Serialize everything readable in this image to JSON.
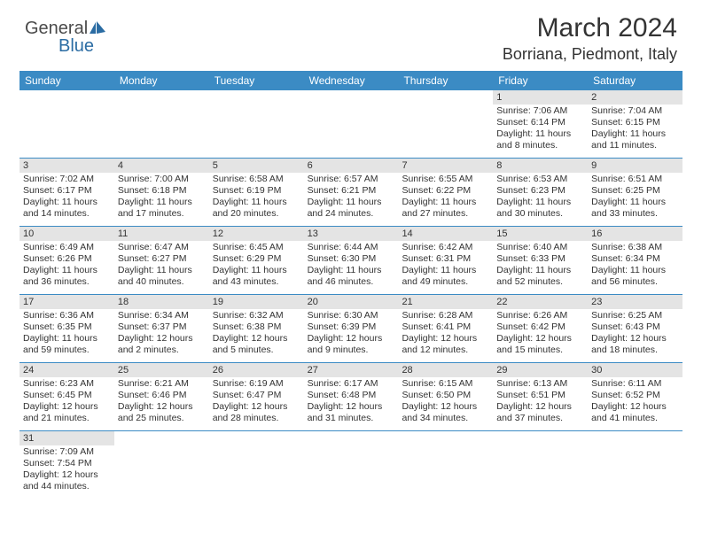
{
  "logo": {
    "general": "General",
    "blue": "Blue"
  },
  "header": {
    "title": "March 2024",
    "location": "Borriana, Piedmont, Italy"
  },
  "colors": {
    "header_bg": "#3b8bc4",
    "header_text": "#ffffff",
    "daynum_bg": "#e4e4e4",
    "row_border": "#3b8bc4",
    "text": "#333333",
    "logo_gray": "#4a4a4a",
    "logo_blue": "#2b6ca3"
  },
  "typography": {
    "title_fontsize": 30,
    "location_fontsize": 18,
    "dayheader_fontsize": 12,
    "daynum_fontsize": 11,
    "content_fontsize": 10.5
  },
  "day_headers": [
    "Sunday",
    "Monday",
    "Tuesday",
    "Wednesday",
    "Thursday",
    "Friday",
    "Saturday"
  ],
  "weeks": [
    [
      {
        "num": "",
        "lines": []
      },
      {
        "num": "",
        "lines": []
      },
      {
        "num": "",
        "lines": []
      },
      {
        "num": "",
        "lines": []
      },
      {
        "num": "",
        "lines": []
      },
      {
        "num": "1",
        "lines": [
          "Sunrise: 7:06 AM",
          "Sunset: 6:14 PM",
          "Daylight: 11 hours",
          "and 8 minutes."
        ]
      },
      {
        "num": "2",
        "lines": [
          "Sunrise: 7:04 AM",
          "Sunset: 6:15 PM",
          "Daylight: 11 hours",
          "and 11 minutes."
        ]
      }
    ],
    [
      {
        "num": "3",
        "lines": [
          "Sunrise: 7:02 AM",
          "Sunset: 6:17 PM",
          "Daylight: 11 hours",
          "and 14 minutes."
        ]
      },
      {
        "num": "4",
        "lines": [
          "Sunrise: 7:00 AM",
          "Sunset: 6:18 PM",
          "Daylight: 11 hours",
          "and 17 minutes."
        ]
      },
      {
        "num": "5",
        "lines": [
          "Sunrise: 6:58 AM",
          "Sunset: 6:19 PM",
          "Daylight: 11 hours",
          "and 20 minutes."
        ]
      },
      {
        "num": "6",
        "lines": [
          "Sunrise: 6:57 AM",
          "Sunset: 6:21 PM",
          "Daylight: 11 hours",
          "and 24 minutes."
        ]
      },
      {
        "num": "7",
        "lines": [
          "Sunrise: 6:55 AM",
          "Sunset: 6:22 PM",
          "Daylight: 11 hours",
          "and 27 minutes."
        ]
      },
      {
        "num": "8",
        "lines": [
          "Sunrise: 6:53 AM",
          "Sunset: 6:23 PM",
          "Daylight: 11 hours",
          "and 30 minutes."
        ]
      },
      {
        "num": "9",
        "lines": [
          "Sunrise: 6:51 AM",
          "Sunset: 6:25 PM",
          "Daylight: 11 hours",
          "and 33 minutes."
        ]
      }
    ],
    [
      {
        "num": "10",
        "lines": [
          "Sunrise: 6:49 AM",
          "Sunset: 6:26 PM",
          "Daylight: 11 hours",
          "and 36 minutes."
        ]
      },
      {
        "num": "11",
        "lines": [
          "Sunrise: 6:47 AM",
          "Sunset: 6:27 PM",
          "Daylight: 11 hours",
          "and 40 minutes."
        ]
      },
      {
        "num": "12",
        "lines": [
          "Sunrise: 6:45 AM",
          "Sunset: 6:29 PM",
          "Daylight: 11 hours",
          "and 43 minutes."
        ]
      },
      {
        "num": "13",
        "lines": [
          "Sunrise: 6:44 AM",
          "Sunset: 6:30 PM",
          "Daylight: 11 hours",
          "and 46 minutes."
        ]
      },
      {
        "num": "14",
        "lines": [
          "Sunrise: 6:42 AM",
          "Sunset: 6:31 PM",
          "Daylight: 11 hours",
          "and 49 minutes."
        ]
      },
      {
        "num": "15",
        "lines": [
          "Sunrise: 6:40 AM",
          "Sunset: 6:33 PM",
          "Daylight: 11 hours",
          "and 52 minutes."
        ]
      },
      {
        "num": "16",
        "lines": [
          "Sunrise: 6:38 AM",
          "Sunset: 6:34 PM",
          "Daylight: 11 hours",
          "and 56 minutes."
        ]
      }
    ],
    [
      {
        "num": "17",
        "lines": [
          "Sunrise: 6:36 AM",
          "Sunset: 6:35 PM",
          "Daylight: 11 hours",
          "and 59 minutes."
        ]
      },
      {
        "num": "18",
        "lines": [
          "Sunrise: 6:34 AM",
          "Sunset: 6:37 PM",
          "Daylight: 12 hours",
          "and 2 minutes."
        ]
      },
      {
        "num": "19",
        "lines": [
          "Sunrise: 6:32 AM",
          "Sunset: 6:38 PM",
          "Daylight: 12 hours",
          "and 5 minutes."
        ]
      },
      {
        "num": "20",
        "lines": [
          "Sunrise: 6:30 AM",
          "Sunset: 6:39 PM",
          "Daylight: 12 hours",
          "and 9 minutes."
        ]
      },
      {
        "num": "21",
        "lines": [
          "Sunrise: 6:28 AM",
          "Sunset: 6:41 PM",
          "Daylight: 12 hours",
          "and 12 minutes."
        ]
      },
      {
        "num": "22",
        "lines": [
          "Sunrise: 6:26 AM",
          "Sunset: 6:42 PM",
          "Daylight: 12 hours",
          "and 15 minutes."
        ]
      },
      {
        "num": "23",
        "lines": [
          "Sunrise: 6:25 AM",
          "Sunset: 6:43 PM",
          "Daylight: 12 hours",
          "and 18 minutes."
        ]
      }
    ],
    [
      {
        "num": "24",
        "lines": [
          "Sunrise: 6:23 AM",
          "Sunset: 6:45 PM",
          "Daylight: 12 hours",
          "and 21 minutes."
        ]
      },
      {
        "num": "25",
        "lines": [
          "Sunrise: 6:21 AM",
          "Sunset: 6:46 PM",
          "Daylight: 12 hours",
          "and 25 minutes."
        ]
      },
      {
        "num": "26",
        "lines": [
          "Sunrise: 6:19 AM",
          "Sunset: 6:47 PM",
          "Daylight: 12 hours",
          "and 28 minutes."
        ]
      },
      {
        "num": "27",
        "lines": [
          "Sunrise: 6:17 AM",
          "Sunset: 6:48 PM",
          "Daylight: 12 hours",
          "and 31 minutes."
        ]
      },
      {
        "num": "28",
        "lines": [
          "Sunrise: 6:15 AM",
          "Sunset: 6:50 PM",
          "Daylight: 12 hours",
          "and 34 minutes."
        ]
      },
      {
        "num": "29",
        "lines": [
          "Sunrise: 6:13 AM",
          "Sunset: 6:51 PM",
          "Daylight: 12 hours",
          "and 37 minutes."
        ]
      },
      {
        "num": "30",
        "lines": [
          "Sunrise: 6:11 AM",
          "Sunset: 6:52 PM",
          "Daylight: 12 hours",
          "and 41 minutes."
        ]
      }
    ],
    [
      {
        "num": "31",
        "lines": [
          "Sunrise: 7:09 AM",
          "Sunset: 7:54 PM",
          "Daylight: 12 hours",
          "and 44 minutes."
        ]
      },
      {
        "num": "",
        "lines": []
      },
      {
        "num": "",
        "lines": []
      },
      {
        "num": "",
        "lines": []
      },
      {
        "num": "",
        "lines": []
      },
      {
        "num": "",
        "lines": []
      },
      {
        "num": "",
        "lines": []
      }
    ]
  ]
}
